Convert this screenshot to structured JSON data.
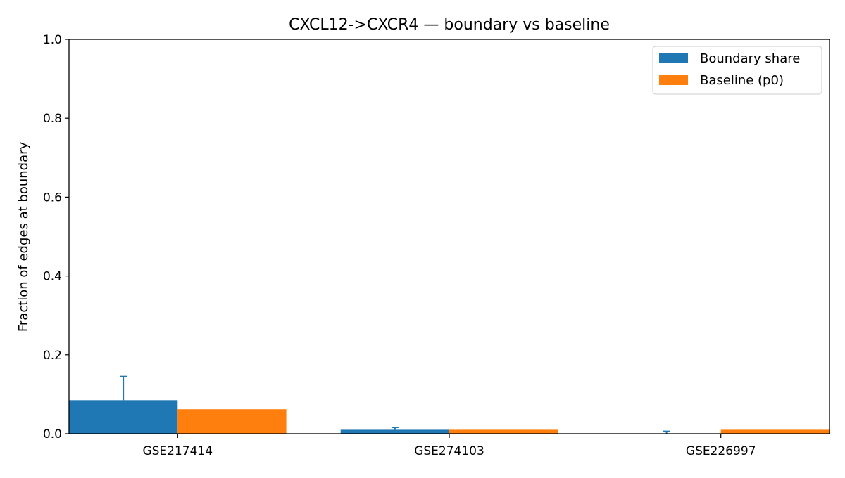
{
  "chart_data": {
    "type": "bar",
    "title": "CXCL12->CXCR4 — boundary vs baseline",
    "xlabel": "",
    "ylabel": "Fraction of edges at boundary",
    "ylim": [
      0,
      1.0
    ],
    "yticks": [
      "0.0",
      "0.2",
      "0.4",
      "0.6",
      "0.8",
      "1.0"
    ],
    "categories": [
      "GSE217414",
      "GSE274103",
      "GSE226997"
    ],
    "series": [
      {
        "name": "Boundary share",
        "color": "#1f77b4",
        "values": [
          0.085,
          0.01,
          0.0
        ],
        "error_upper": [
          0.145,
          0.016,
          0.006
        ]
      },
      {
        "name": "Baseline (p0)",
        "color": "#ff7f0e",
        "values": [
          0.062,
          0.01,
          0.01
        ]
      }
    ],
    "grid": false,
    "legend_position": "top-right"
  }
}
